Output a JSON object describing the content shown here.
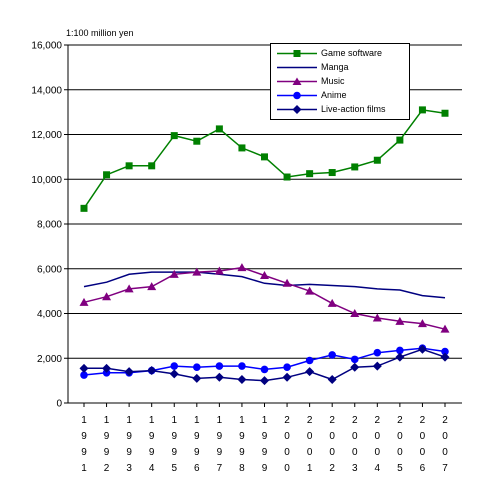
{
  "chart_data": {
    "type": "line",
    "unit_label": "1:100 million yen",
    "ylim": [
      0,
      16000
    ],
    "yticks": [
      0,
      2000,
      4000,
      6000,
      8000,
      10000,
      12000,
      14000,
      16000
    ],
    "ytick_labels": [
      "0",
      "2,000",
      "4,000",
      "6,000",
      "8,000",
      "10,000",
      "12,000",
      "14,000",
      "16,000"
    ],
    "categories": [
      "1991",
      "1992",
      "1993",
      "1994",
      "1995",
      "1996",
      "1997",
      "1998",
      "1999",
      "2000",
      "2001",
      "2002",
      "2003",
      "2004",
      "2005",
      "2006",
      "2007"
    ],
    "grid": "horizontal",
    "legend_position": "top-right",
    "series": [
      {
        "name": "Game software",
        "color": "#008000",
        "marker": "square",
        "values": [
          8700,
          10200,
          10600,
          10600,
          11950,
          11700,
          12250,
          11400,
          11000,
          10100,
          10250,
          10300,
          10550,
          10850,
          11750,
          13100,
          12950
        ]
      },
      {
        "name": "Manga",
        "color": "#000080",
        "marker": "none",
        "values": [
          5200,
          5400,
          5750,
          5850,
          5850,
          5850,
          5750,
          5650,
          5350,
          5250,
          5300,
          5250,
          5200,
          5100,
          5050,
          4800,
          4700
        ]
      },
      {
        "name": "Music",
        "color": "#800080",
        "marker": "triangle",
        "values": [
          4500,
          4750,
          5100,
          5200,
          5750,
          5850,
          5900,
          6050,
          5700,
          5350,
          5000,
          4450,
          4000,
          3800,
          3650,
          3550,
          3300
        ]
      },
      {
        "name": "Anime",
        "color": "#0000FF",
        "marker": "circle",
        "values": [
          1250,
          1350,
          1350,
          1450,
          1650,
          1600,
          1650,
          1650,
          1500,
          1600,
          1900,
          2150,
          1950,
          2250,
          2350,
          2450,
          2300
        ]
      },
      {
        "name": "Live-action films",
        "color": "#000080",
        "marker": "diamond",
        "values": [
          1550,
          1550,
          1400,
          1450,
          1300,
          1100,
          1150,
          1050,
          1000,
          1150,
          1400,
          1050,
          1600,
          1650,
          2050,
          2400,
          2050
        ]
      }
    ]
  }
}
